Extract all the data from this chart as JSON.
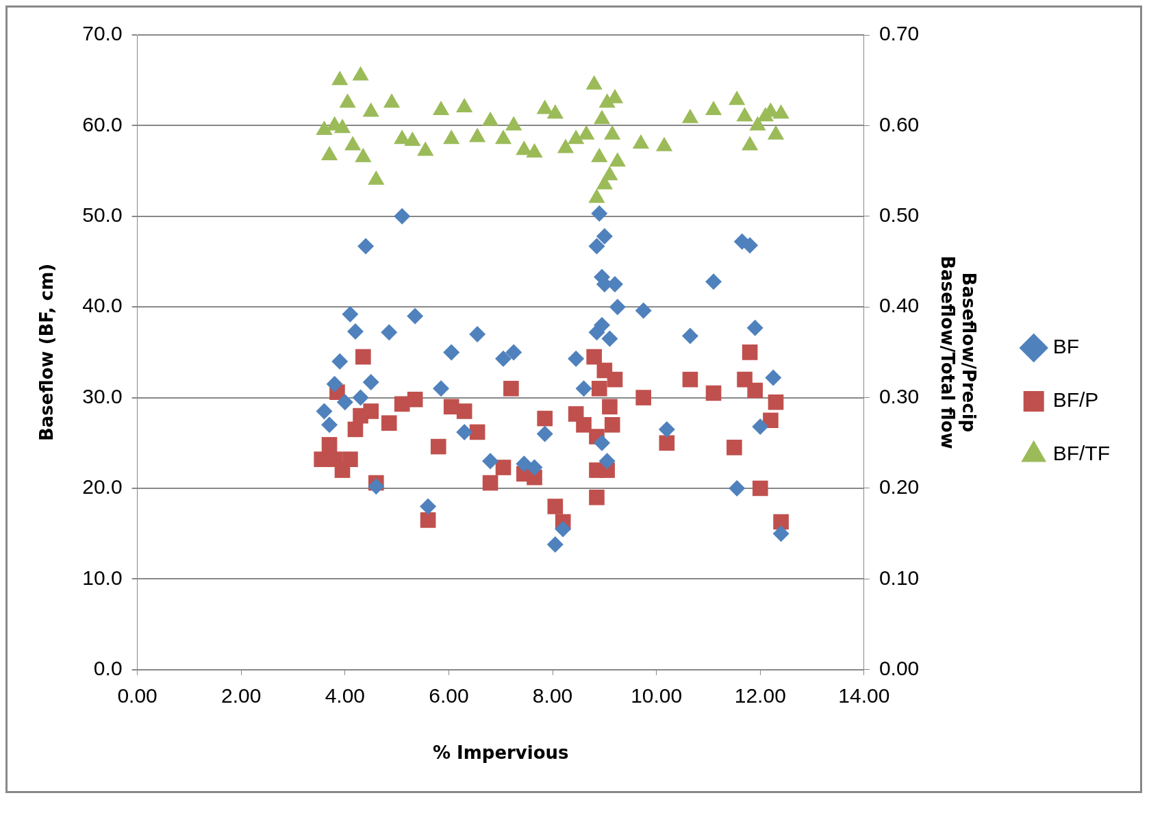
{
  "chart_data": {
    "type": "scatter",
    "xlabel": "% Impervious",
    "ylabel": "Baseflow (BF, cm)",
    "y2label": "Baseflow/Precip\nBaseflow/Total flow",
    "xlim": [
      0,
      14
    ],
    "xticks": [
      {
        "value": 0,
        "label": "0.00"
      },
      {
        "value": 2,
        "label": "2.00"
      },
      {
        "value": 4,
        "label": "4.00"
      },
      {
        "value": 6,
        "label": "6.00"
      },
      {
        "value": 8,
        "label": "8.00"
      },
      {
        "value": 10,
        "label": "10.00"
      },
      {
        "value": 12,
        "label": "12.00"
      },
      {
        "value": 14,
        "label": "14.00"
      }
    ],
    "ylim": [
      0,
      70
    ],
    "yticks": [
      {
        "value": 0,
        "label": "0.0"
      },
      {
        "value": 10,
        "label": "10.0"
      },
      {
        "value": 20,
        "label": "20.0"
      },
      {
        "value": 30,
        "label": "30.0"
      },
      {
        "value": 40,
        "label": "40.0"
      },
      {
        "value": 50,
        "label": "50.0"
      },
      {
        "value": 60,
        "label": "60.0"
      },
      {
        "value": 70,
        "label": "70.0"
      }
    ],
    "y2lim": [
      0,
      0.7
    ],
    "y2ticks": [
      {
        "value": 0,
        "label": "0.00"
      },
      {
        "value": 0.1,
        "label": "0.10"
      },
      {
        "value": 0.2,
        "label": "0.20"
      },
      {
        "value": 0.3,
        "label": "0.30"
      },
      {
        "value": 0.4,
        "label": "0.40"
      },
      {
        "value": 0.5,
        "label": "0.50"
      },
      {
        "value": 0.6,
        "label": "0.60"
      },
      {
        "value": 0.7,
        "label": "0.70"
      }
    ],
    "grid": "y",
    "legend": "right",
    "series": [
      {
        "name": "BF",
        "color": "#4f81bd",
        "marker": "diamond",
        "x": [
          3.6,
          3.7,
          3.8,
          3.9,
          4.0,
          4.1,
          4.2,
          4.3,
          4.4,
          4.5,
          4.6,
          5.1,
          4.85,
          5.35,
          5.6,
          5.85,
          6.05,
          6.3,
          6.55,
          6.8,
          7.05,
          7.25,
          7.45,
          7.65,
          7.85,
          8.05,
          8.2,
          8.45,
          8.6,
          8.85,
          8.85,
          8.9,
          8.95,
          9.0,
          8.95,
          9.0,
          9.1,
          9.2,
          9.25,
          9.05,
          8.95,
          9.75,
          10.2,
          10.65,
          11.1,
          11.55,
          11.65,
          11.8,
          11.9,
          12.0,
          12.25,
          12.4
        ],
        "values": [
          28.5,
          27,
          31.5,
          34,
          29.5,
          39.2,
          37.3,
          30,
          46.7,
          31.7,
          20.2,
          50,
          37.2,
          39,
          18,
          31,
          35,
          26.2,
          37,
          23,
          34.3,
          35,
          22.7,
          22.3,
          26,
          13.8,
          15.5,
          34.3,
          31,
          37.2,
          46.7,
          50.3,
          43.3,
          47.8,
          38,
          42.5,
          36.5,
          42.5,
          40,
          23,
          25,
          39.6,
          26.5,
          36.8,
          42.8,
          20,
          47.2,
          46.8,
          37.7,
          26.8,
          32.2,
          15
        ]
      },
      {
        "name": "BF/P",
        "color": "#c0504d",
        "marker": "square",
        "axis": "y2",
        "x": [
          3.55,
          3.7,
          3.8,
          3.85,
          3.95,
          4.1,
          4.2,
          4.3,
          4.35,
          4.5,
          4.6,
          4.85,
          5.1,
          5.35,
          5.6,
          5.8,
          6.05,
          6.3,
          6.55,
          6.8,
          7.05,
          7.2,
          7.45,
          7.65,
          7.85,
          8.05,
          8.2,
          8.45,
          8.6,
          8.8,
          8.85,
          8.85,
          8.85,
          8.9,
          9.0,
          9.05,
          9.1,
          9.15,
          9.2,
          9.75,
          10.2,
          10.65,
          11.1,
          11.5,
          11.7,
          11.8,
          11.9,
          12.0,
          12.2,
          12.3,
          12.4
        ],
        "values": [
          0.232,
          0.248,
          0.232,
          0.306,
          0.22,
          0.232,
          0.265,
          0.28,
          0.345,
          0.285,
          0.206,
          0.272,
          0.293,
          0.298,
          0.165,
          0.246,
          0.29,
          0.285,
          0.262,
          0.206,
          0.223,
          0.31,
          0.216,
          0.212,
          0.277,
          0.18,
          0.163,
          0.282,
          0.27,
          0.345,
          0.257,
          0.22,
          0.19,
          0.31,
          0.33,
          0.22,
          0.29,
          0.27,
          0.32,
          0.3,
          0.25,
          0.32,
          0.305,
          0.245,
          0.32,
          0.35,
          0.308,
          0.2,
          0.275,
          0.295,
          0.163
        ]
      },
      {
        "name": "BF/TF",
        "color": "#9bbb59",
        "marker": "triangle",
        "axis": "y2",
        "x": [
          3.6,
          3.7,
          3.8,
          3.9,
          3.95,
          4.05,
          4.15,
          4.3,
          4.35,
          4.5,
          4.6,
          4.9,
          5.1,
          5.3,
          5.55,
          5.85,
          6.05,
          6.3,
          6.55,
          6.8,
          7.05,
          7.25,
          7.45,
          7.65,
          7.85,
          8.05,
          8.25,
          8.45,
          8.65,
          8.8,
          8.85,
          8.9,
          8.95,
          9.0,
          9.05,
          9.1,
          9.15,
          9.2,
          9.25,
          9.7,
          10.15,
          10.65,
          11.1,
          11.55,
          11.7,
          11.8,
          11.95,
          12.1,
          12.2,
          12.3,
          12.4
        ],
        "values": [
          0.595,
          0.567,
          0.6,
          0.65,
          0.597,
          0.625,
          0.578,
          0.655,
          0.565,
          0.615,
          0.54,
          0.625,
          0.585,
          0.583,
          0.572,
          0.617,
          0.585,
          0.62,
          0.587,
          0.605,
          0.585,
          0.6,
          0.573,
          0.57,
          0.618,
          0.613,
          0.575,
          0.585,
          0.59,
          0.645,
          0.52,
          0.565,
          0.607,
          0.535,
          0.625,
          0.545,
          0.59,
          0.63,
          0.56,
          0.58,
          0.577,
          0.608,
          0.617,
          0.628,
          0.61,
          0.578,
          0.6,
          0.61,
          0.615,
          0.59,
          0.613
        ]
      }
    ]
  }
}
